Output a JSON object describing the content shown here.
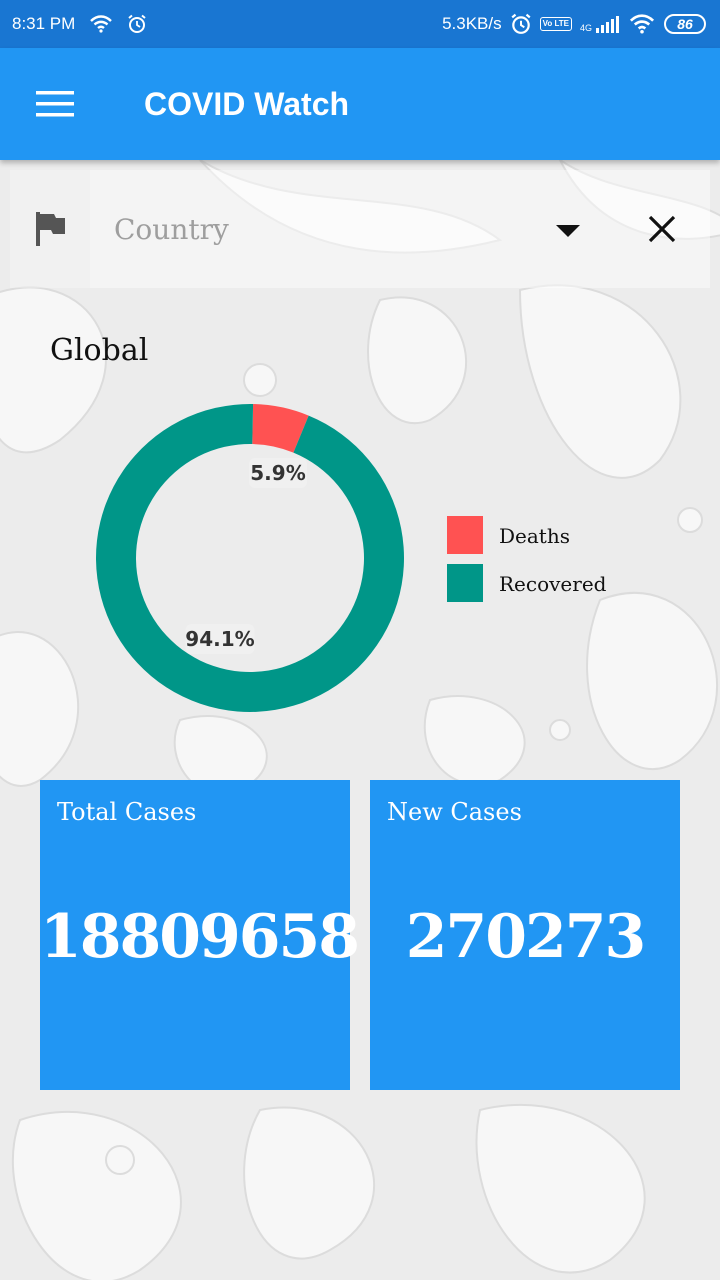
{
  "status_bar": {
    "time": "8:31 PM",
    "net_speed": "5.3KB/s",
    "battery": "86",
    "volte": "Vo LTE",
    "network": "4G"
  },
  "app_bar": {
    "title": "COVID Watch"
  },
  "country_select": {
    "placeholder": "Country"
  },
  "region": {
    "label": "Global"
  },
  "chart_data": {
    "type": "pie",
    "donut": true,
    "slices": [
      {
        "label": "Deaths",
        "value": 5.9,
        "display": "5.9%",
        "color": "#ff5252"
      },
      {
        "label": "Recovered",
        "value": 94.1,
        "display": "94.1%",
        "color": "#009688"
      }
    ],
    "legend_position": "right"
  },
  "cards": {
    "total": {
      "label": "Total Cases",
      "value": "18809658"
    },
    "new": {
      "label": "New Cases",
      "value": "270273"
    }
  },
  "colors": {
    "status_bar": "#1976d2",
    "app_bar": "#2196f3",
    "card": "#2196f3"
  }
}
